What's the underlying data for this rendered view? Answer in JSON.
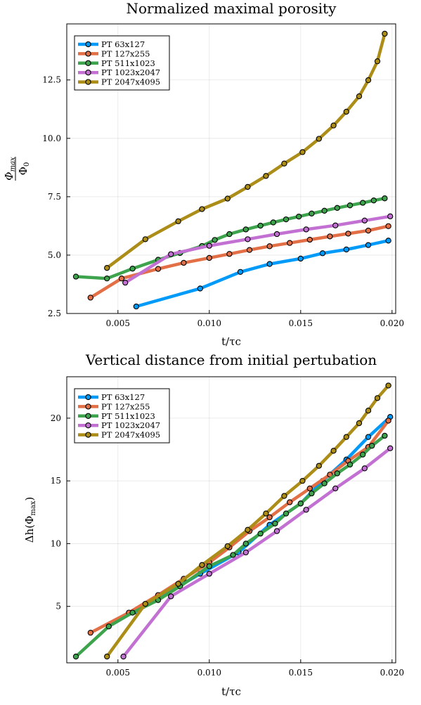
{
  "chart_data": [
    {
      "type": "line",
      "title": "Normalized maximal porosity",
      "xlabel": "t/τc",
      "ylabel_num": "Φ",
      "ylabel_num_sub": "max",
      "ylabel_den": "Φ",
      "ylabel_den_sub": "0",
      "xlim": [
        0.0022,
        0.0202
      ],
      "ylim": [
        2.5,
        14.9
      ],
      "xticks": [
        0.005,
        0.01,
        0.015,
        0.02
      ],
      "xtick_labels": [
        "0.005",
        "0.010",
        "0.015",
        "0.020"
      ],
      "yticks": [
        2.5,
        5.0,
        7.5,
        10.0,
        12.5
      ],
      "ytick_labels": [
        "2.5",
        "5.0",
        "7.5",
        "10.0",
        "12.5"
      ],
      "grid": true,
      "legend_position": "top-left",
      "series": [
        {
          "name": "PT 63x127",
          "color": "#009af9",
          "x": [
            0.006,
            0.0095,
            0.0117,
            0.0133,
            0.015,
            0.0162,
            0.0175,
            0.0187,
            0.0198
          ],
          "y": [
            2.8,
            3.57,
            4.28,
            4.62,
            4.85,
            5.08,
            5.24,
            5.43,
            5.62
          ]
        },
        {
          "name": "PT 127x255",
          "color": "#e26f46",
          "x": [
            0.0035,
            0.0052,
            0.0072,
            0.0086,
            0.01,
            0.0111,
            0.0122,
            0.0133,
            0.0144,
            0.0155,
            0.0166,
            0.0176,
            0.0187,
            0.0198
          ],
          "y": [
            3.18,
            4.0,
            4.41,
            4.67,
            4.88,
            5.05,
            5.22,
            5.38,
            5.52,
            5.66,
            5.8,
            5.92,
            6.05,
            6.24
          ]
        },
        {
          "name": "PT 511x1023",
          "color": "#3da44d",
          "x": [
            0.0027,
            0.0044,
            0.0058,
            0.0072,
            0.0084,
            0.0096,
            0.0103,
            0.0111,
            0.012,
            0.0128,
            0.0135,
            0.0142,
            0.0149,
            0.0156,
            0.0163,
            0.017,
            0.0177,
            0.0184,
            0.019,
            0.0196
          ],
          "y": [
            4.08,
            4.0,
            4.42,
            4.8,
            5.09,
            5.39,
            5.65,
            5.9,
            6.1,
            6.26,
            6.4,
            6.53,
            6.65,
            6.78,
            6.9,
            7.02,
            7.13,
            7.24,
            7.34,
            7.43
          ]
        },
        {
          "name": "PT 1023x2047",
          "color": "#c271d2",
          "x": [
            0.0054,
            0.0079,
            0.01,
            0.0121,
            0.0137,
            0.0153,
            0.0169,
            0.0185,
            0.0199
          ],
          "y": [
            3.82,
            5.04,
            5.4,
            5.68,
            5.9,
            6.1,
            6.27,
            6.48,
            6.66
          ]
        },
        {
          "name": "PT 2047x4095",
          "color": "#ac8d18",
          "x": [
            0.0044,
            0.0065,
            0.0083,
            0.0096,
            0.011,
            0.0121,
            0.0131,
            0.0141,
            0.0151,
            0.016,
            0.0168,
            0.0175,
            0.0182,
            0.0187,
            0.0192,
            0.0196
          ],
          "y": [
            4.45,
            5.68,
            6.45,
            6.97,
            7.42,
            7.92,
            8.39,
            8.92,
            9.41,
            9.98,
            10.55,
            11.14,
            11.8,
            12.49,
            13.3,
            14.48
          ]
        }
      ]
    },
    {
      "type": "line",
      "title": "Vertical distance from initial pertubation",
      "xlabel": "t/τc",
      "ylabel": "Δh(Φ",
      "ylabel_sub": "max",
      "ylabel_tail": ")",
      "xlim": [
        0.0022,
        0.0202
      ],
      "ylim": [
        0.5,
        23.3
      ],
      "xticks": [
        0.005,
        0.01,
        0.015,
        0.02
      ],
      "xtick_labels": [
        "0.005",
        "0.010",
        "0.015",
        "0.020"
      ],
      "yticks": [
        5,
        10,
        15,
        20
      ],
      "ytick_labels": [
        "5",
        "10",
        "15",
        "20"
      ],
      "grid": true,
      "legend_position": "top-left",
      "series": [
        {
          "name": "PT 63x127",
          "color": "#009af9",
          "x": [
            0.006,
            0.0095,
            0.0116,
            0.0133,
            0.015,
            0.0162,
            0.0175,
            0.0187,
            0.0199
          ],
          "y": [
            4.6,
            7.6,
            9.3,
            11.5,
            13.2,
            15.0,
            16.7,
            18.5,
            20.1
          ]
        },
        {
          "name": "PT 127x255",
          "color": "#e26f46",
          "x": [
            0.0035,
            0.0056,
            0.0072,
            0.0086,
            0.01,
            0.0111,
            0.0122,
            0.0133,
            0.0144,
            0.0155,
            0.0166,
            0.0176,
            0.0187,
            0.0198
          ],
          "y": [
            2.9,
            4.5,
            5.9,
            7.2,
            8.5,
            9.7,
            11.0,
            12.1,
            13.3,
            14.4,
            15.5,
            16.6,
            17.7,
            19.8
          ]
        },
        {
          "name": "PT 511x1023",
          "color": "#3da44d",
          "x": [
            0.0027,
            0.0045,
            0.0058,
            0.0072,
            0.0084,
            0.01,
            0.0113,
            0.012,
            0.0128,
            0.0136,
            0.0142,
            0.015,
            0.0156,
            0.0163,
            0.017,
            0.0177,
            0.0184,
            0.0189,
            0.0196
          ],
          "y": [
            1.0,
            3.4,
            4.5,
            5.5,
            6.6,
            8.2,
            9.1,
            10.0,
            10.8,
            11.6,
            12.4,
            13.2,
            14.0,
            14.8,
            15.6,
            16.3,
            17.1,
            17.8,
            18.6
          ]
        },
        {
          "name": "PT 1023x2047",
          "color": "#c271d2",
          "x": [
            0.0053,
            0.0079,
            0.01,
            0.012,
            0.0137,
            0.0153,
            0.0169,
            0.0185,
            0.0199
          ],
          "y": [
            1.0,
            5.8,
            7.6,
            9.3,
            11.0,
            12.7,
            14.4,
            16.0,
            17.6
          ]
        },
        {
          "name": "PT 2047x4095",
          "color": "#ac8d18",
          "x": [
            0.0044,
            0.0065,
            0.0083,
            0.0096,
            0.011,
            0.0121,
            0.0131,
            0.0141,
            0.0151,
            0.016,
            0.0168,
            0.0175,
            0.0182,
            0.0187,
            0.0192,
            0.0198
          ],
          "y": [
            1.0,
            5.2,
            6.8,
            8.3,
            9.8,
            11.1,
            12.4,
            13.8,
            15.0,
            16.2,
            17.4,
            18.5,
            19.6,
            20.6,
            21.6,
            22.6
          ]
        }
      ]
    }
  ]
}
